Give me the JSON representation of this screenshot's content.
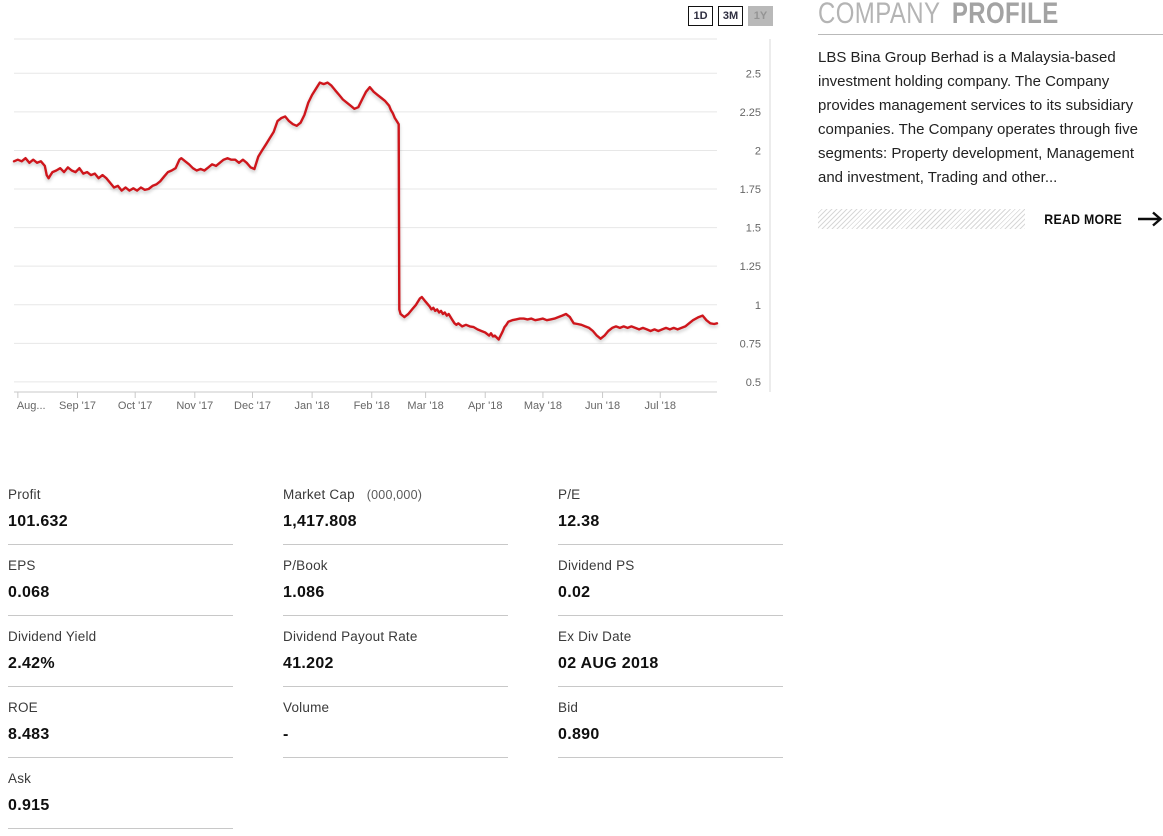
{
  "chart": {
    "range_buttons": [
      {
        "label": "1D",
        "selected": false
      },
      {
        "label": "3M",
        "selected": false
      },
      {
        "label": "1Y",
        "selected": true
      }
    ],
    "chart_data": {
      "type": "line",
      "series_color": "#ce181e",
      "grid": true,
      "ylim": [
        0.46,
        2.72
      ],
      "y_ticks": [
        {
          "value": 2.5,
          "label": "2.5"
        },
        {
          "value": 2.25,
          "label": "2.25"
        },
        {
          "value": 2.0,
          "label": "2"
        },
        {
          "value": 1.75,
          "label": "1.75"
        },
        {
          "value": 1.5,
          "label": "1.5"
        },
        {
          "value": 1.25,
          "label": "1.25"
        },
        {
          "value": 1.0,
          "label": "1"
        },
        {
          "value": 0.75,
          "label": "0.75"
        },
        {
          "value": 0.5,
          "label": "0.5"
        }
      ],
      "x_ticks": [
        {
          "label": "Aug...",
          "day": 0
        },
        {
          "label": "Sep '17",
          "day": 31
        },
        {
          "label": "Oct '17",
          "day": 61
        },
        {
          "label": "Nov '17",
          "day": 92
        },
        {
          "label": "Dec '17",
          "day": 122
        },
        {
          "label": "Jan '18",
          "day": 153
        },
        {
          "label": "Feb '18",
          "day": 184
        },
        {
          "label": "Mar '18",
          "day": 212
        },
        {
          "label": "Apr '18",
          "day": 243
        },
        {
          "label": "May '18",
          "day": 273
        },
        {
          "label": "Jun '18",
          "day": 304
        },
        {
          "label": "Jul '18",
          "day": 334
        }
      ],
      "series": [
        {
          "name": "price",
          "points": [
            [
              -2,
              1.93
            ],
            [
              0,
              1.94
            ],
            [
              2,
              1.93
            ],
            [
              4,
              1.95
            ],
            [
              6,
              1.92
            ],
            [
              8,
              1.94
            ],
            [
              10,
              1.92
            ],
            [
              12,
              1.93
            ],
            [
              14,
              1.9
            ],
            [
              15,
              1.84
            ],
            [
              16,
              1.82
            ],
            [
              17,
              1.84
            ],
            [
              18,
              1.86
            ],
            [
              20,
              1.87
            ],
            [
              22,
              1.885
            ],
            [
              24,
              1.86
            ],
            [
              26,
              1.89
            ],
            [
              28,
              1.87
            ],
            [
              30,
              1.86
            ],
            [
              32,
              1.885
            ],
            [
              34,
              1.85
            ],
            [
              36,
              1.86
            ],
            [
              38,
              1.84
            ],
            [
              40,
              1.85
            ],
            [
              42,
              1.82
            ],
            [
              44,
              1.84
            ],
            [
              46,
              1.82
            ],
            [
              48,
              1.79
            ],
            [
              50,
              1.76
            ],
            [
              52,
              1.77
            ],
            [
              54,
              1.74
            ],
            [
              56,
              1.76
            ],
            [
              58,
              1.74
            ],
            [
              60,
              1.755
            ],
            [
              62,
              1.74
            ],
            [
              64,
              1.76
            ],
            [
              66,
              1.745
            ],
            [
              68,
              1.75
            ],
            [
              70,
              1.77
            ],
            [
              72,
              1.78
            ],
            [
              74,
              1.8
            ],
            [
              76,
              1.83
            ],
            [
              78,
              1.86
            ],
            [
              80,
              1.87
            ],
            [
              82,
              1.885
            ],
            [
              84,
              1.94
            ],
            [
              85,
              1.95
            ],
            [
              87,
              1.93
            ],
            [
              89,
              1.91
            ],
            [
              91,
              1.885
            ],
            [
              93,
              1.87
            ],
            [
              95,
              1.88
            ],
            [
              97,
              1.87
            ],
            [
              99,
              1.89
            ],
            [
              101,
              1.91
            ],
            [
              103,
              1.9
            ],
            [
              105,
              1.92
            ],
            [
              107,
              1.94
            ],
            [
              109,
              1.95
            ],
            [
              111,
              1.94
            ],
            [
              113,
              1.94
            ],
            [
              115,
              1.92
            ],
            [
              117,
              1.94
            ],
            [
              119,
              1.92
            ],
            [
              121,
              1.89
            ],
            [
              123,
              1.88
            ],
            [
              125,
              1.96
            ],
            [
              127,
              2.0
            ],
            [
              129,
              2.04
            ],
            [
              131,
              2.08
            ],
            [
              133,
              2.12
            ],
            [
              135,
              2.19
            ],
            [
              137,
              2.21
            ],
            [
              139,
              2.22
            ],
            [
              141,
              2.19
            ],
            [
              143,
              2.17
            ],
            [
              145,
              2.16
            ],
            [
              147,
              2.18
            ],
            [
              149,
              2.23
            ],
            [
              151,
              2.31
            ],
            [
              153,
              2.36
            ],
            [
              155,
              2.4
            ],
            [
              157,
              2.44
            ],
            [
              159,
              2.43
            ],
            [
              161,
              2.44
            ],
            [
              163,
              2.42
            ],
            [
              165,
              2.39
            ],
            [
              167,
              2.36
            ],
            [
              169,
              2.33
            ],
            [
              171,
              2.31
            ],
            [
              173,
              2.29
            ],
            [
              175,
              2.27
            ],
            [
              177,
              2.28
            ],
            [
              179,
              2.33
            ],
            [
              181,
              2.38
            ],
            [
              183,
              2.41
            ],
            [
              185,
              2.38
            ],
            [
              187,
              2.36
            ],
            [
              189,
              2.34
            ],
            [
              191,
              2.32
            ],
            [
              193,
              2.29
            ],
            [
              194,
              2.26
            ],
            [
              195,
              2.24
            ],
            [
              196,
              2.21
            ],
            [
              197,
              2.19
            ],
            [
              198,
              2.17
            ],
            [
              198.3,
              0.97
            ],
            [
              199,
              0.94
            ],
            [
              200,
              0.93
            ],
            [
              201,
              0.92
            ],
            [
              203,
              0.94
            ],
            [
              205,
              0.97
            ],
            [
              207,
              1.0
            ],
            [
              209,
              1.04
            ],
            [
              210,
              1.05
            ],
            [
              212,
              1.02
            ],
            [
              214,
              0.99
            ],
            [
              215,
              0.97
            ],
            [
              216,
              0.98
            ],
            [
              217,
              0.96
            ],
            [
              218,
              0.97
            ],
            [
              219,
              0.95
            ],
            [
              220,
              0.96
            ],
            [
              221,
              0.94
            ],
            [
              222,
              0.95
            ],
            [
              223,
              0.93
            ],
            [
              224,
              0.94
            ],
            [
              225,
              0.92
            ],
            [
              226,
              0.9
            ],
            [
              227,
              0.88
            ],
            [
              228,
              0.87
            ],
            [
              229,
              0.88
            ],
            [
              231,
              0.86
            ],
            [
              233,
              0.87
            ],
            [
              235,
              0.86
            ],
            [
              237,
              0.855
            ],
            [
              239,
              0.84
            ],
            [
              241,
              0.83
            ],
            [
              243,
              0.82
            ],
            [
              245,
              0.8
            ],
            [
              246,
              0.815
            ],
            [
              247,
              0.795
            ],
            [
              248,
              0.8
            ],
            [
              250,
              0.775
            ],
            [
              252,
              0.825
            ],
            [
              253,
              0.855
            ],
            [
              254,
              0.87
            ],
            [
              255,
              0.89
            ],
            [
              257,
              0.9
            ],
            [
              259,
              0.905
            ],
            [
              261,
              0.91
            ],
            [
              263,
              0.91
            ],
            [
              265,
              0.905
            ],
            [
              267,
              0.91
            ],
            [
              269,
              0.9
            ],
            [
              271,
              0.905
            ],
            [
              273,
              0.91
            ],
            [
              275,
              0.9
            ],
            [
              277,
              0.905
            ],
            [
              279,
              0.91
            ],
            [
              281,
              0.92
            ],
            [
              283,
              0.93
            ],
            [
              285,
              0.94
            ],
            [
              287,
              0.92
            ],
            [
              288,
              0.9
            ],
            [
              289,
              0.88
            ],
            [
              291,
              0.875
            ],
            [
              293,
              0.87
            ],
            [
              295,
              0.86
            ],
            [
              297,
              0.85
            ],
            [
              299,
              0.83
            ],
            [
              301,
              0.8
            ],
            [
              303,
              0.78
            ],
            [
              305,
              0.8
            ],
            [
              307,
              0.83
            ],
            [
              309,
              0.85
            ],
            [
              311,
              0.86
            ],
            [
              313,
              0.85
            ],
            [
              315,
              0.86
            ],
            [
              317,
              0.85
            ],
            [
              319,
              0.86
            ],
            [
              321,
              0.85
            ],
            [
              323,
              0.84
            ],
            [
              325,
              0.85
            ],
            [
              327,
              0.84
            ],
            [
              329,
              0.83
            ],
            [
              331,
              0.84
            ],
            [
              333,
              0.83
            ],
            [
              335,
              0.84
            ],
            [
              337,
              0.85
            ],
            [
              339,
              0.84
            ],
            [
              341,
              0.85
            ],
            [
              343,
              0.84
            ],
            [
              345,
              0.85
            ],
            [
              347,
              0.86
            ],
            [
              349,
              0.88
            ],
            [
              351,
              0.9
            ],
            [
              354,
              0.92
            ],
            [
              356,
              0.93
            ],
            [
              358,
              0.9
            ],
            [
              360,
              0.88
            ],
            [
              362,
              0.875
            ],
            [
              363.5,
              0.88
            ]
          ]
        }
      ]
    }
  },
  "profile": {
    "heading_light": "COMPANY",
    "heading_bold": "PROFILE",
    "description": "LBS Bina Group Berhad is a Malaysia-based investment holding company. The Company provides management services to its subsidiary companies. The Company operates through five segments: Property development, Management and investment, Trading and other...",
    "read_more_label": "READ MORE"
  },
  "stats": {
    "rows": [
      [
        {
          "label": "Profit",
          "value": "101.632"
        },
        {
          "label": "Market Cap",
          "sublabel": "(000,000)",
          "value": "1,417.808"
        },
        {
          "label": "P/E",
          "value": "12.38"
        }
      ],
      [
        {
          "label": "EPS",
          "value": "0.068"
        },
        {
          "label": "P/Book",
          "value": "1.086"
        },
        {
          "label": "Dividend PS",
          "value": "0.02"
        }
      ],
      [
        {
          "label": "Dividend Yield",
          "value": "2.42%"
        },
        {
          "label": "Dividend Payout Rate",
          "value": "41.202"
        },
        {
          "label": "Ex Div Date",
          "value": "02 AUG 2018"
        }
      ],
      [
        {
          "label": "ROE",
          "value": "8.483"
        },
        {
          "label": "Volume",
          "value": "-"
        },
        {
          "label": "Bid",
          "value": "0.890"
        }
      ],
      [
        {
          "label": "Ask",
          "value": "0.915"
        }
      ]
    ]
  }
}
